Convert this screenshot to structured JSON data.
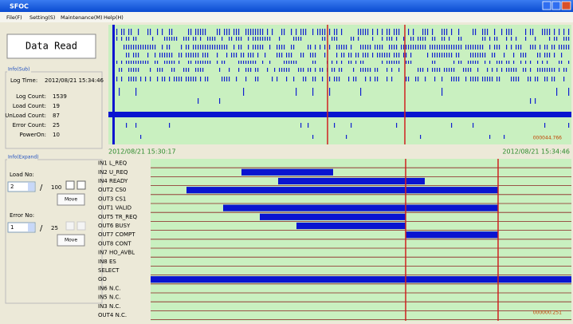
{
  "window": {
    "title": "SFOC"
  },
  "menu": [
    "File(F)",
    "Setting(S)",
    "Maintenance(M)",
    "Help(H)"
  ],
  "button": "Data Read",
  "info_sub": {
    "title": "Info(Sub)",
    "log_time_label": "Log Time:",
    "log_time": "2012/08/21 15:34:46",
    "rows": [
      {
        "label": "Log Count:",
        "value": 1539
      },
      {
        "label": "Load Count:",
        "value": 19
      },
      {
        "label": "UnLoad Count:",
        "value": 87
      },
      {
        "label": "Error Count:",
        "value": 25
      },
      {
        "label": "PowerOn:",
        "value": 10
      }
    ]
  },
  "info_expand": {
    "title": "Info(Expand)",
    "load": {
      "label": "Load No:",
      "value": 2,
      "slash": "/",
      "total": 100,
      "move": "Move"
    },
    "error": {
      "label": "Error No:",
      "value": 1,
      "slash": "/",
      "total": 25,
      "move": "Move"
    }
  },
  "timeline": {
    "start": "2012/08/21 15:30:17",
    "end": "2012/08/21 15:34:46",
    "offset": "000044.766"
  },
  "signals": {
    "labels": [
      "IN1 L_REQ",
      "IN2 U_REQ",
      "IN4 READY",
      "OUT2 CS0",
      "OUT3 CS1",
      "OUT1 VALID",
      "OUT5 TR_REQ",
      "OUT6 BUSY",
      "OUT7 COMPT",
      "OUT8 CONT",
      "IN7 HO_AVBL",
      "IN8 ES",
      "SELECT",
      "GO",
      "IN6 N.C.",
      "IN5 N.C.",
      "IN3 N.C.",
      "OUT4 N.C."
    ],
    "offset": "000000.251"
  }
}
